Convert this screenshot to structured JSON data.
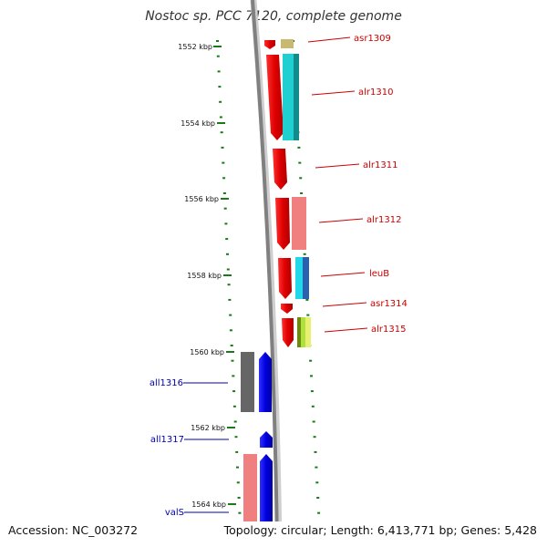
{
  "title": "Nostoc sp. PCC 7120, complete genome",
  "footer": {
    "accession": "Accession: NC_003272",
    "topology": "Topology: circular; Length: 6,413,771 bp; Genes: 5,428"
  },
  "colors": {
    "forward_label": "#cc0000",
    "reverse_label": "#0000aa",
    "tick": "#1a7a1a"
  },
  "scale": {
    "unit": "kbp",
    "ticks": [
      {
        "label": "1552 kbp",
        "kbp": 1552
      },
      {
        "label": "1554 kbp",
        "kbp": 1554
      },
      {
        "label": "1556 kbp",
        "kbp": 1556
      },
      {
        "label": "1558 kbp",
        "kbp": 1558
      },
      {
        "label": "1560 kbp",
        "kbp": 1560
      },
      {
        "label": "1562 kbp",
        "kbp": 1562
      },
      {
        "label": "1564 kbp",
        "kbp": 1564
      }
    ]
  },
  "genes": [
    {
      "name": "asr1309",
      "strand": "forward",
      "color": "#ff0000",
      "compare_color": "#c8b870"
    },
    {
      "name": "alr1310",
      "strand": "forward",
      "color": "#ff0000",
      "compare_color": "#20d0d0"
    },
    {
      "name": "alr1311",
      "strand": "forward",
      "color": "#ff0000",
      "compare_color": ""
    },
    {
      "name": "alr1312",
      "strand": "forward",
      "color": "#ff0000",
      "compare_color": "#f08080"
    },
    {
      "name": "leuB",
      "strand": "forward",
      "color": "#ff0000",
      "compare_color": "#20d0e0"
    },
    {
      "name": "asr1314",
      "strand": "forward",
      "color": "#ff0000",
      "compare_color": ""
    },
    {
      "name": "alr1315",
      "strand": "forward",
      "color": "#ff0000",
      "compare_color": "#88c030"
    },
    {
      "name": "all1316",
      "strand": "reverse",
      "color": "#0000ff",
      "compare_color": "#666666"
    },
    {
      "name": "all1317",
      "strand": "reverse",
      "color": "#0000ff",
      "compare_color": ""
    },
    {
      "name": "valS",
      "strand": "reverse",
      "color": "#0000ff",
      "compare_color": "#f08080"
    }
  ]
}
